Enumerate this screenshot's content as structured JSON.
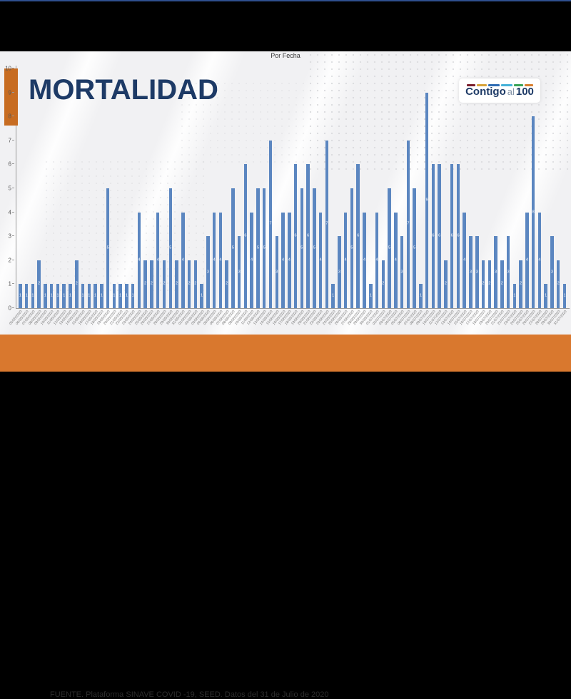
{
  "slide": {
    "title": "MORTALIDAD",
    "footer": "FUENTE. Plataforma SINAVE COVID -19, SEED. Datos del 31 de Julio de 2020",
    "logo": {
      "part1": "Contigo",
      "part2": "al",
      "part3": "100",
      "dash_colors": [
        "#7b1f2e",
        "#d8a33a",
        "#2e6cb4",
        "#45b1d8",
        "#3aa356",
        "#d87f2f"
      ],
      "dash_widths": [
        12,
        14,
        16,
        16,
        13,
        12
      ]
    },
    "colors": {
      "accent_orange": "#d9782e",
      "accent_orange_square": "#c76c21",
      "title_navy": "#1d3a66",
      "bar_blue": "#5b86c0",
      "panel_bg": "#f1f1f3",
      "letterbox_black": "#000000",
      "top_line_blue": "#2e4f8e"
    }
  },
  "chart_data": {
    "type": "bar",
    "title": "Por Fecha",
    "xlabel": "",
    "ylabel": "",
    "ylim": [
      0,
      10
    ],
    "yticks": [
      0,
      1,
      2,
      3,
      4,
      5,
      6,
      7,
      8,
      9,
      10
    ],
    "grid": false,
    "legend": false,
    "bar_color": "#5b86c0",
    "value_label_color": "#ffffff",
    "x": [
      "05/05/2020",
      "06/05/2020",
      "07/05/2020",
      "08/05/2020",
      "09/05/2020",
      "10/05/2020",
      "11/05/2020",
      "12/05/2020",
      "13/05/2020",
      "14/05/2020",
      "15/05/2020",
      "16/05/2020",
      "17/05/2020",
      "18/05/2020",
      "19/05/2020",
      "20/05/2020",
      "21/05/2020",
      "22/05/2020",
      "23/05/2020",
      "24/05/2020",
      "25/05/2020",
      "26/05/2020",
      "27/05/2020",
      "28/05/2020",
      "29/05/2020",
      "30/05/2020",
      "31/05/2020",
      "01/06/2020",
      "02/06/2020",
      "03/06/2020",
      "04/06/2020",
      "05/06/2020",
      "06/06/2020",
      "07/06/2020",
      "08/06/2020",
      "09/06/2020",
      "10/06/2020",
      "11/06/2020",
      "12/06/2020",
      "13/06/2020",
      "14/06/2020",
      "15/06/2020",
      "16/06/2020",
      "17/06/2020",
      "18/06/2020",
      "19/06/2020",
      "20/06/2020",
      "21/06/2020",
      "22/06/2020",
      "23/06/2020",
      "24/06/2020",
      "25/06/2020",
      "26/06/2020",
      "27/06/2020",
      "28/06/2020",
      "29/06/2020",
      "30/06/2020",
      "01/07/2020",
      "02/07/2020",
      "03/07/2020",
      "04/07/2020",
      "05/07/2020",
      "06/07/2020",
      "07/07/2020",
      "08/07/2020",
      "09/07/2020",
      "10/07/2020",
      "11/07/2020",
      "12/07/2020",
      "13/07/2020",
      "14/07/2020",
      "15/07/2020",
      "16/07/2020",
      "17/07/2020",
      "18/07/2020",
      "19/07/2020",
      "20/07/2020",
      "21/07/2020",
      "22/07/2020",
      "23/07/2020",
      "24/07/2020",
      "25/07/2020",
      "26/07/2020",
      "27/07/2020",
      "28/07/2020",
      "29/07/2020",
      "30/07/2020",
      "31/07/2020"
    ],
    "values": [
      1,
      1,
      1,
      2,
      1,
      1,
      1,
      1,
      1,
      2,
      1,
      1,
      1,
      1,
      5,
      1,
      1,
      1,
      1,
      4,
      2,
      2,
      4,
      2,
      5,
      2,
      4,
      2,
      2,
      1,
      3,
      4,
      4,
      2,
      5,
      3,
      6,
      4,
      5,
      5,
      7,
      3,
      4,
      4,
      6,
      5,
      6,
      5,
      4,
      7,
      1,
      3,
      4,
      5,
      6,
      4,
      1,
      4,
      2,
      5,
      4,
      3,
      7,
      5,
      1,
      9,
      6,
      6,
      2,
      6,
      6,
      4,
      3,
      3,
      2,
      2,
      3,
      2,
      3,
      1,
      2,
      4,
      8,
      4,
      1,
      3,
      2,
      1
    ]
  }
}
